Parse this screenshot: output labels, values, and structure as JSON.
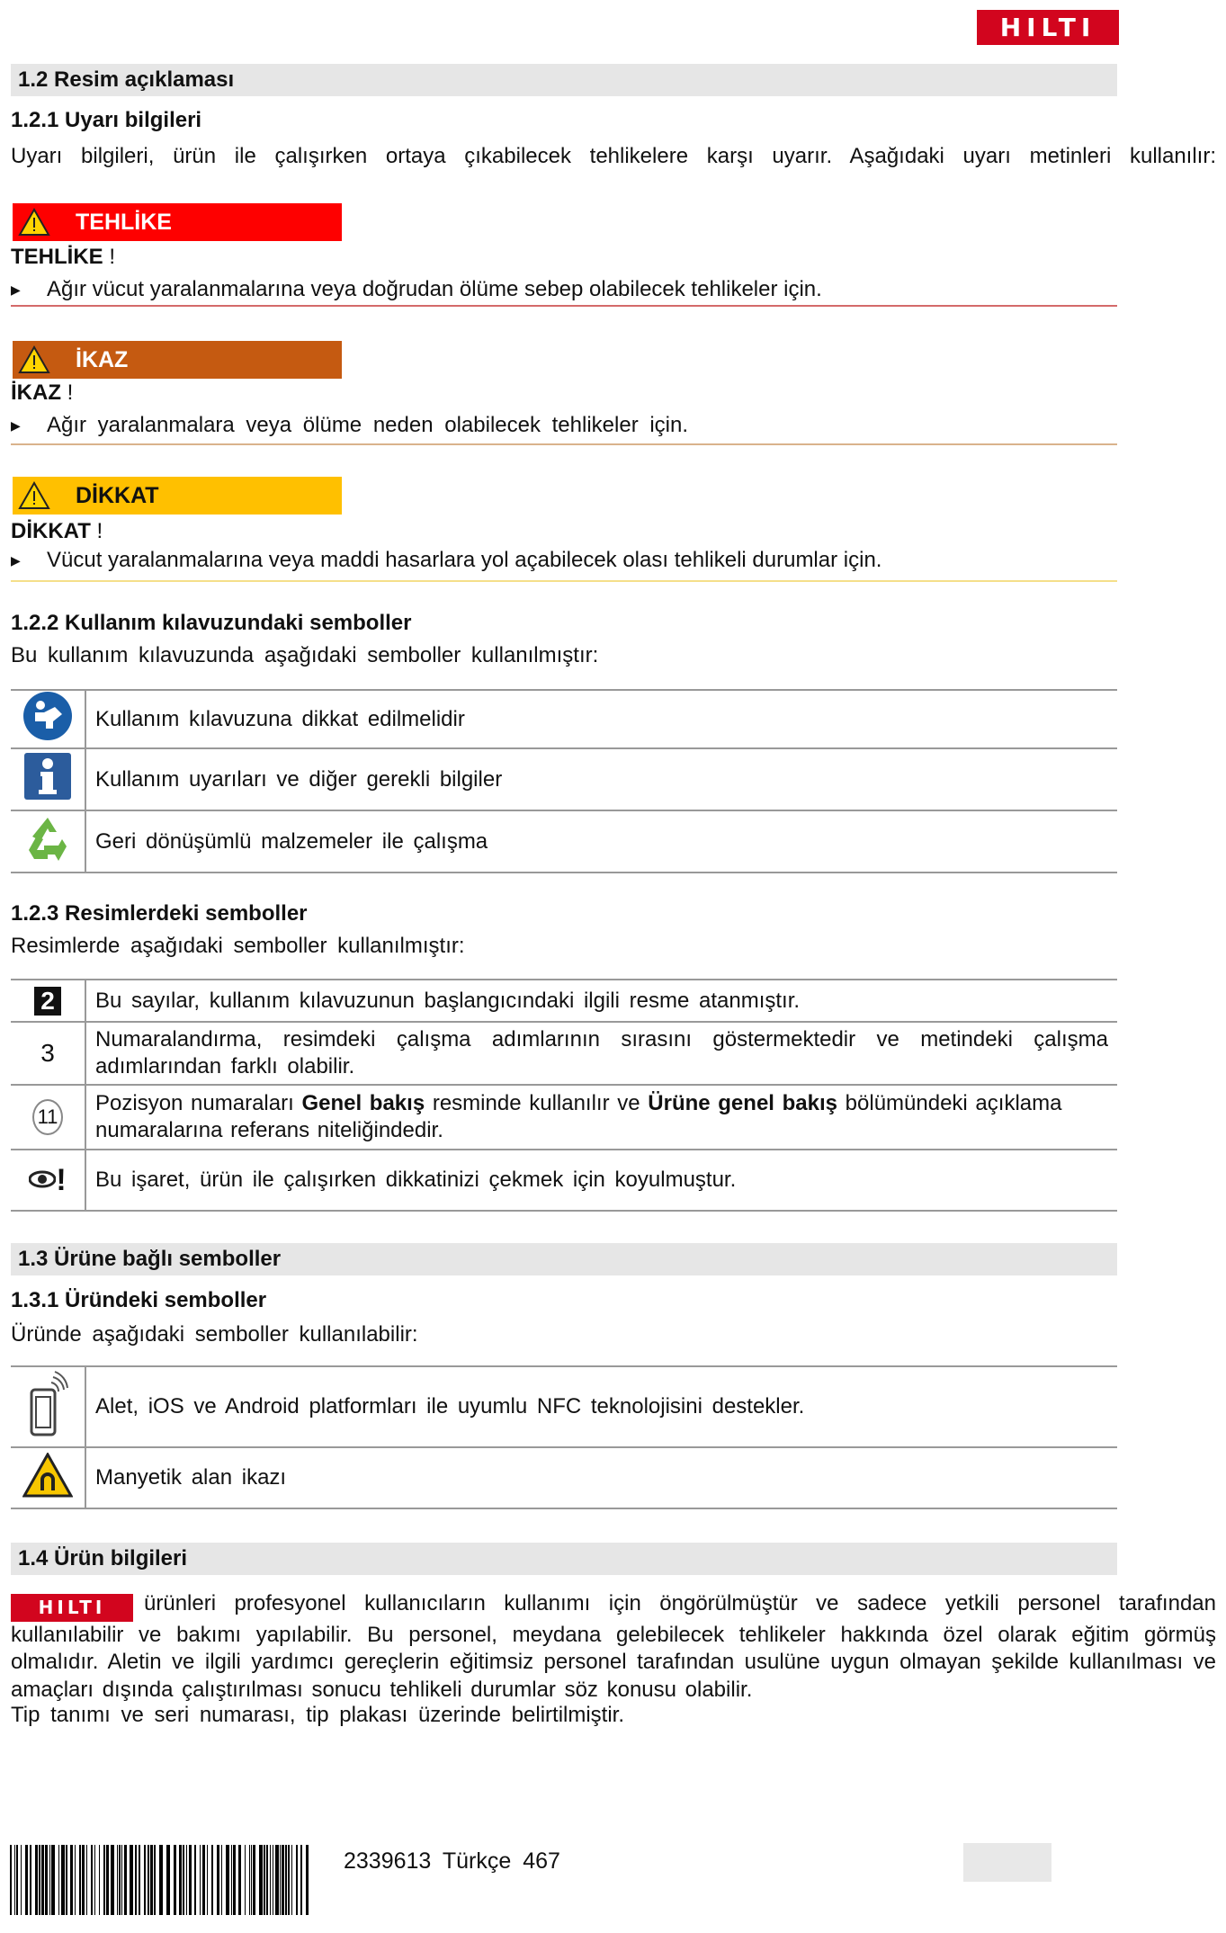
{
  "logo_text": "HILTI",
  "section_1_2": {
    "title": "1.2 Resim açıklaması"
  },
  "s121": {
    "title": "1.2.1 Uyarı bilgileri",
    "intro": "Uyarı bilgileri, ürün ile çalışırken ortaya çıkabilecek tehlikelere karşı uyarır. Aşağıdaki uyarı metinleri kullanılır:"
  },
  "warnings": [
    {
      "label": "TEHLİKE",
      "signal": "TEHLİKE",
      "excl": "!",
      "text": "Ağır vücut yaralanmalarına veya doğrudan ölüme sebep olabilecek tehlikeler için.",
      "color": "#fe0000",
      "line": "#d46a6a"
    },
    {
      "label": "İKAZ",
      "signal": "İKAZ",
      "excl": "!",
      "text": "Ağır yaralanmalara veya ölüme neden olabilecek tehlikeler için.",
      "color": "#c55a11",
      "line": "#d9b38c"
    },
    {
      "label": "DİKKAT",
      "signal": "DİKKAT",
      "excl": "!",
      "text": "Vücut yaralanmalarına veya maddi hasarlara yol açabilecek olası tehlikeli durumlar için.",
      "color": "#ffc000",
      "line": "#f5df8a"
    }
  ],
  "s122": {
    "title": "1.2.2 Kullanım kılavuzundaki semboller",
    "intro": "Bu kullanım kılavuzunda aşağıdaki semboller kullanılmıştır:",
    "rows": [
      {
        "icon": "read-manual-icon",
        "text": "Kullanım kılavuzuna dikkat edilmelidir"
      },
      {
        "icon": "info-icon",
        "text": "Kullanım uyarıları ve diğer gerekli bilgiler"
      },
      {
        "icon": "recycle-icon",
        "text": "Geri dönüşümlü malzemeler ile çalışma"
      }
    ]
  },
  "s123": {
    "title": "1.2.3 Resimlerdeki semboller",
    "intro": "Resimlerde aşağıdaki semboller kullanılmıştır:",
    "rows": [
      {
        "icon_text": "2",
        "text": "Bu sayılar, kullanım kılavuzunun başlangıcındaki ilgili resme atanmıştır."
      },
      {
        "icon_text": "3",
        "text": "Numaralandırma, resimdeki çalışma adımlarının sırasını göstermektedir ve metindeki çalışma adımlarından farklı olabilir."
      },
      {
        "icon_text": "11",
        "t1": "Pozisyon numaraları ",
        "b1": "Genel bakış",
        "t2": " resminde kullanılır ve ",
        "b2": "Ürüne genel bakış",
        "t3": " bölümündeki açıklama numaralarına referans niteliğindedir."
      },
      {
        "icon": "eye-attention-icon",
        "icon_text": "!",
        "text": "Bu işaret, ürün ile çalışırken dikkatinizi çekmek için koyulmuştur."
      }
    ]
  },
  "section_1_3": {
    "title": "1.3 Ürüne bağlı semboller"
  },
  "s131": {
    "title": "1.3.1 Üründeki semboller",
    "intro": "Üründe aşağıdaki semboller kullanılabilir:",
    "rows": [
      {
        "icon": "nfc-phone-icon",
        "text": "Alet, iOS ve Android platformları ile uyumlu NFC teknolojisini destekler."
      },
      {
        "icon": "magnetic-field-warning-icon",
        "text": "Manyetik alan ikazı"
      }
    ]
  },
  "section_1_4": {
    "title": "1.4 Ürün bilgileri",
    "paragraph": "ürünleri profesyonel kullanıcıların kullanımı için öngörülmüştür ve sadece yetkili personel tarafından kullanılabilir ve bakımı yapılabilir. Bu personel, meydana gelebilecek tehlikeler hakkında özel olarak eğitim görmüş olmalıdır. Aletin ve ilgili yardımcı gereçlerin eğitimsiz personel tarafından usulüne uygun olmayan şekilde kullanılması ve amaçları dışında çalıştırılması sonucu tehlikeli durumlar söz konusu olabilir.",
    "paragraph2": "Tip tanımı ve seri numarası, tip plakası üzerinde belirtilmiştir."
  },
  "footer": {
    "doc_number": "2339613",
    "language": "Türkçe",
    "page": "467"
  }
}
